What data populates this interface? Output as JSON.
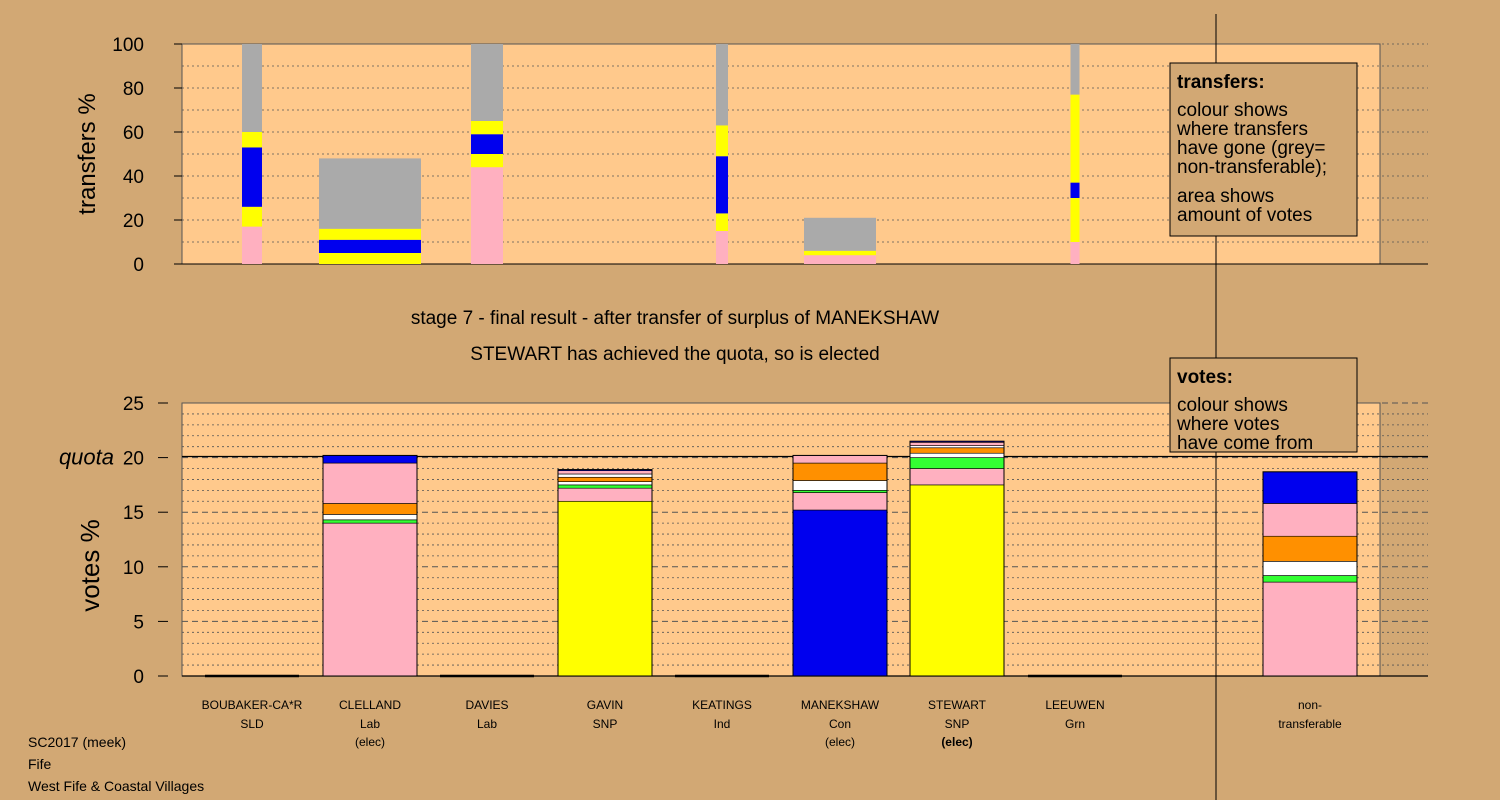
{
  "colors": {
    "background": "#d2a874",
    "plot_area": "#ffc98c",
    "pink": "#ffb0c0",
    "yellow": "#ffff00",
    "blue": "#0000ee",
    "grey": "#aaaaaa",
    "orange": "#ff9000",
    "white": "#ffffff",
    "green": "#33ff33"
  },
  "stage_title": "stage 7 - final result - after transfer of surplus of MANEKSHAW",
  "stage_subtitle": "STEWART has achieved the quota, so is elected",
  "footer": [
    "SC2017 (meek)",
    "Fife",
    "West Fife & Coastal Villages"
  ],
  "legend_transfers": {
    "title": "transfers:",
    "lines": [
      "colour shows",
      "where transfers",
      "have gone (grey=",
      "non-transferable);",
      "area shows",
      "amount of votes"
    ]
  },
  "legend_votes": {
    "title": "votes:",
    "lines": [
      "colour shows",
      "where votes",
      "have come from"
    ]
  },
  "chart_data": [
    {
      "type": "bar",
      "title": "",
      "ylabel": "transfers %",
      "ylim": [
        0,
        100
      ],
      "yticks": [
        0,
        20,
        40,
        60,
        80,
        100
      ],
      "grid": "dotted",
      "legend": "top-right",
      "bars": [
        {
          "candidate": "BOUBAKER-CA*R",
          "segments": [
            {
              "color": "pink",
              "value": 17
            },
            {
              "color": "yellow",
              "value": 9
            },
            {
              "color": "blue",
              "value": 27
            },
            {
              "color": "yellow",
              "value": 7
            },
            {
              "color": "grey",
              "value": 40
            }
          ]
        },
        {
          "candidate": "CLELLAND",
          "segments": [
            {
              "color": "yellow",
              "value": 5
            },
            {
              "color": "blue",
              "value": 6
            },
            {
              "color": "yellow",
              "value": 5
            },
            {
              "color": "grey",
              "value": 32
            }
          ]
        },
        {
          "candidate": "DAVIES",
          "segments": [
            {
              "color": "pink",
              "value": 44
            },
            {
              "color": "yellow",
              "value": 6
            },
            {
              "color": "blue",
              "value": 9
            },
            {
              "color": "yellow",
              "value": 6
            },
            {
              "color": "grey",
              "value": 35
            }
          ]
        },
        {
          "candidate": "KEATINGS",
          "segments": [
            {
              "color": "pink",
              "value": 15
            },
            {
              "color": "yellow",
              "value": 8
            },
            {
              "color": "blue",
              "value": 26
            },
            {
              "color": "yellow",
              "value": 14
            },
            {
              "color": "grey",
              "value": 37
            }
          ]
        },
        {
          "candidate": "MANEKSHAW",
          "segments": [
            {
              "color": "pink",
              "value": 4
            },
            {
              "color": "yellow",
              "value": 2
            },
            {
              "color": "grey",
              "value": 15
            }
          ]
        },
        {
          "candidate": "LEEUWEN",
          "segments": [
            {
              "color": "pink",
              "value": 10
            },
            {
              "color": "yellow",
              "value": 20
            },
            {
              "color": "blue",
              "value": 7
            },
            {
              "color": "yellow",
              "value": 40
            },
            {
              "color": "grey",
              "value": 23
            }
          ]
        }
      ]
    },
    {
      "type": "bar",
      "title": "",
      "ylabel": "votes %",
      "ylim": [
        0,
        25
      ],
      "yticks": [
        0,
        5,
        10,
        15,
        20,
        25
      ],
      "quota": 20.1,
      "quota_label": "quota",
      "grid": "dotted",
      "legend": "top-right",
      "categories": [
        {
          "name": "BOUBAKER-CA*R",
          "party": "SLD",
          "status": "",
          "segments": []
        },
        {
          "name": "CLELLAND",
          "party": "Lab",
          "status": "(elec)",
          "segments": [
            {
              "color": "pink",
              "value": 14.0
            },
            {
              "color": "green",
              "value": 0.3
            },
            {
              "color": "white",
              "value": 0.5
            },
            {
              "color": "orange",
              "value": 1.0
            },
            {
              "color": "pink",
              "value": 3.7
            },
            {
              "color": "blue",
              "value": 0.7
            }
          ]
        },
        {
          "name": "DAVIES",
          "party": "Lab",
          "status": "",
          "segments": []
        },
        {
          "name": "GAVIN",
          "party": "SNP",
          "status": "",
          "segments": [
            {
              "color": "yellow",
              "value": 16.0
            },
            {
              "color": "pink",
              "value": 1.2
            },
            {
              "color": "green",
              "value": 0.3
            },
            {
              "color": "white",
              "value": 0.3
            },
            {
              "color": "orange",
              "value": 0.4
            },
            {
              "color": "white",
              "value": 0.3
            },
            {
              "color": "pink",
              "value": 0.3
            },
            {
              "color": "blue",
              "value": 0.1
            }
          ]
        },
        {
          "name": "KEATINGS",
          "party": "Ind",
          "status": "",
          "segments": []
        },
        {
          "name": "MANEKSHAW",
          "party": "Con",
          "status": "(elec)",
          "segments": [
            {
              "color": "blue",
              "value": 15.2
            },
            {
              "color": "pink",
              "value": 1.6
            },
            {
              "color": "green",
              "value": 0.2
            },
            {
              "color": "white",
              "value": 0.9
            },
            {
              "color": "orange",
              "value": 1.6
            },
            {
              "color": "pink",
              "value": 0.7
            }
          ]
        },
        {
          "name": "STEWART",
          "party": "SNP",
          "status": "(elec)",
          "status_bold": true,
          "segments": [
            {
              "color": "yellow",
              "value": 17.5
            },
            {
              "color": "pink",
              "value": 1.5
            },
            {
              "color": "green",
              "value": 1.0
            },
            {
              "color": "white",
              "value": 0.4
            },
            {
              "color": "orange",
              "value": 0.5
            },
            {
              "color": "white",
              "value": 0.2
            },
            {
              "color": "pink",
              "value": 0.3
            },
            {
              "color": "blue",
              "value": 0.1
            }
          ]
        },
        {
          "name": "LEEUWEN",
          "party": "Grn",
          "status": "",
          "segments": []
        },
        {
          "name": "non-",
          "party": "transferable",
          "status": "",
          "segments": [
            {
              "color": "pink",
              "value": 8.6
            },
            {
              "color": "green",
              "value": 0.6
            },
            {
              "color": "white",
              "value": 1.3
            },
            {
              "color": "orange",
              "value": 2.3
            },
            {
              "color": "pink",
              "value": 3.0
            },
            {
              "color": "blue",
              "value": 2.9
            }
          ]
        }
      ]
    }
  ]
}
